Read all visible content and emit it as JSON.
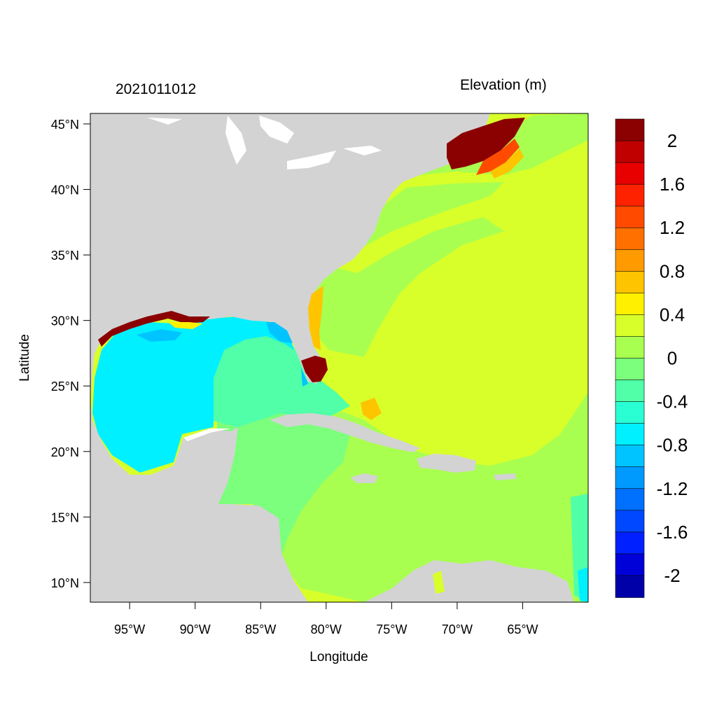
{
  "header": {
    "timestamp": "2021011012",
    "variable": "Elevation (m)"
  },
  "axes": {
    "xlabel": "Longitude",
    "ylabel": "Latitude",
    "lon_range": [
      -98,
      -60
    ],
    "lat_range": [
      8.5,
      45.8
    ],
    "lon_ticks": [
      {
        "value": -95,
        "label": "95°W"
      },
      {
        "value": -90,
        "label": "90°W"
      },
      {
        "value": -85,
        "label": "85°W"
      },
      {
        "value": -80,
        "label": "80°W"
      },
      {
        "value": -75,
        "label": "75°W"
      },
      {
        "value": -70,
        "label": "70°W"
      },
      {
        "value": -65,
        "label": "65°W"
      }
    ],
    "lat_ticks": [
      {
        "value": 45,
        "label": "45°N"
      },
      {
        "value": 40,
        "label": "40°N"
      },
      {
        "value": 35,
        "label": "35°N"
      },
      {
        "value": 30,
        "label": "30°N"
      },
      {
        "value": 25,
        "label": "25°N"
      },
      {
        "value": 20,
        "label": "20°N"
      },
      {
        "value": 15,
        "label": "15°N"
      },
      {
        "value": 10,
        "label": "10°N"
      }
    ]
  },
  "colors": {
    "land": "#d3d3d3",
    "inland_water": "#ffffff",
    "frame": "#000000"
  },
  "colorbar": {
    "colors_top_to_bottom": [
      "#8b0000",
      "#c00000",
      "#e80000",
      "#ff2200",
      "#ff4a00",
      "#ff7000",
      "#ff9a00",
      "#ffc400",
      "#fff000",
      "#d8ff2a",
      "#a8ff50",
      "#7cff7c",
      "#50ffa8",
      "#2affd4",
      "#00f0ff",
      "#00c4ff",
      "#009aff",
      "#0070ff",
      "#0048ff",
      "#0020ff",
      "#0000d8",
      "#0000a8"
    ],
    "labels": [
      {
        "text": "2",
        "at": 1
      },
      {
        "text": "1.6",
        "at": 3
      },
      {
        "text": "1.2",
        "at": 5
      },
      {
        "text": "0.8",
        "at": 7
      },
      {
        "text": "0.4",
        "at": 9
      },
      {
        "text": "0",
        "at": 11
      },
      {
        "text": "-0.4",
        "at": 13
      },
      {
        "text": "-0.8",
        "at": 15
      },
      {
        "text": "-1.2",
        "at": 17
      },
      {
        "text": "-1.6",
        "at": 19
      },
      {
        "text": "-2",
        "at": 21
      }
    ]
  }
}
